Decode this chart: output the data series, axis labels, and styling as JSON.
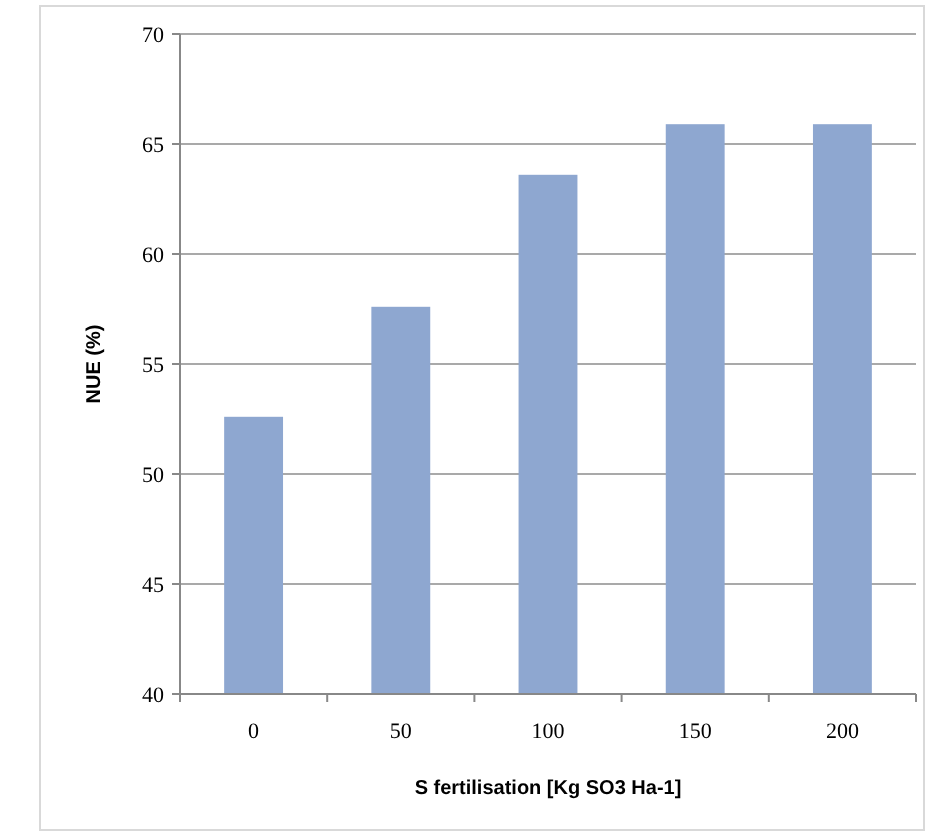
{
  "chart_data": {
    "type": "bar",
    "xlabel": "S fertilisation [Kg SO3 Ha-1]",
    "ylabel": "NUE (%)",
    "categories": [
      "0",
      "50",
      "100",
      "150",
      "200"
    ],
    "values": [
      52.6,
      57.6,
      63.6,
      65.9,
      65.9
    ],
    "color": "#8ea7d0",
    "ylim": [
      40,
      70
    ],
    "yticks": [
      40,
      45,
      50,
      55,
      60,
      65,
      70
    ],
    "grid": "y"
  }
}
